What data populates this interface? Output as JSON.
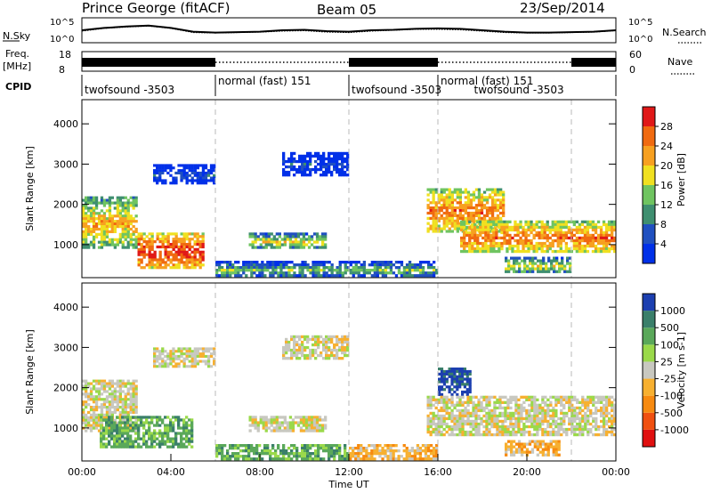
{
  "header": {
    "station": "Prince George (fitACF)",
    "beam": "Beam 05",
    "date": "23/Sep/2014"
  },
  "colors": {
    "power_scale": [
      "#0030e8",
      "#2050c0",
      "#3f8f70",
      "#6fc460",
      "#f0e020",
      "#f7a020",
      "#f06a10",
      "#e01818"
    ],
    "velocity_scale": [
      "#1c3fb0",
      "#3a7f6a",
      "#5aa85a",
      "#9ad94a",
      "#c8c8c0",
      "#f7b030",
      "#f78a10",
      "#f05010",
      "#e01010"
    ]
  },
  "chart_data": [
    {
      "type": "line",
      "panel": "noise",
      "series": [
        {
          "name": "N.Sky",
          "values": [
            2.5,
            3.0,
            3.3,
            3.5,
            3.0,
            2.2,
            2.0,
            2.1,
            2.2,
            2.5,
            2.6,
            2.3,
            2.2,
            2.5,
            2.6,
            2.8,
            2.9,
            2.8,
            2.5,
            2.2,
            2.0,
            2.0,
            2.1,
            2.2,
            2.5
          ]
        },
        {
          "name": "N.Search",
          "values": [
            2.3,
            2.9,
            3.2,
            3.4,
            2.9,
            2.0,
            1.9,
            2.0,
            2.1,
            2.3,
            2.4,
            2.1,
            2.0,
            2.3,
            2.5,
            2.7,
            2.7,
            2.6,
            2.3,
            2.0,
            1.9,
            1.9,
            2.0,
            2.1,
            2.4
          ]
        }
      ],
      "x": [
        "00",
        "01",
        "02",
        "03",
        "04",
        "05",
        "06",
        "07",
        "08",
        "09",
        "10",
        "11",
        "12",
        "13",
        "14",
        "15",
        "16",
        "17",
        "18",
        "19",
        "20",
        "21",
        "22",
        "23",
        "24"
      ],
      "ylabel_left": "N.Sky",
      "ylabel_right": "N.Search",
      "left_ticks": [
        "10^5",
        "10^0"
      ],
      "right_ticks": [
        "10^5",
        "10^0"
      ]
    },
    {
      "type": "line",
      "panel": "freq-nave",
      "ylabel_left_line1": "Freq.",
      "ylabel_left_line2": "[MHz]",
      "ylabel_right": "Nave",
      "left_ticks": [
        "18",
        "8"
      ],
      "right_ticks": [
        "60",
        "0"
      ],
      "segments": [
        {
          "start": 0,
          "end": 6,
          "style": "solid"
        },
        {
          "start": 6,
          "end": 12,
          "style": "dotted"
        },
        {
          "start": 12,
          "end": 16,
          "style": "solid"
        },
        {
          "start": 16,
          "end": 22,
          "style": "dotted"
        },
        {
          "start": 22,
          "end": 24,
          "style": "solid"
        }
      ]
    },
    {
      "type": "table",
      "panel": "cpid",
      "label": "CPID",
      "modes": [
        {
          "start": 0,
          "end": 6,
          "text": "twofsound -3503",
          "row": 1
        },
        {
          "start": 6,
          "end": 12,
          "text": "normal (fast) 151",
          "row": 0
        },
        {
          "start": 12,
          "end": 16,
          "text": "twofsound -3503",
          "row": 1
        },
        {
          "start": 16,
          "end": 22,
          "text": "normal (fast) 151",
          "row": 0
        },
        {
          "start": 17.5,
          "end": 22,
          "text": "twofsound -3503",
          "row": 1
        }
      ]
    },
    {
      "type": "heatmap",
      "panel": "power",
      "ylabel": "Slant Range [km]",
      "yticks": [
        1000,
        2000,
        3000,
        4000
      ],
      "ylim": [
        180,
        4600
      ],
      "xlim": [
        0,
        24
      ],
      "colorbar_label": "Power [dB]",
      "colorbar_ticks": [
        "28",
        "24",
        "20",
        "16",
        "12",
        "8",
        "4"
      ],
      "echo_regions": [
        {
          "t0": 0.0,
          "t1": 2.5,
          "r0": 900,
          "r1": 2200,
          "level": 5
        },
        {
          "t0": 2.5,
          "t1": 5.5,
          "r0": 400,
          "r1": 1300,
          "level": 7
        },
        {
          "t0": 3.2,
          "t1": 6.0,
          "r0": 2500,
          "r1": 3000,
          "level": 1
        },
        {
          "t0": 7.5,
          "t1": 11.0,
          "r0": 900,
          "r1": 1300,
          "level": 4
        },
        {
          "t0": 9.0,
          "t1": 12.0,
          "r0": 2700,
          "r1": 3300,
          "level": 1
        },
        {
          "t0": 6.0,
          "t1": 16.0,
          "r0": 200,
          "r1": 600,
          "level": 3
        },
        {
          "t0": 15.5,
          "t1": 19.0,
          "r0": 1300,
          "r1": 2400,
          "level": 6
        },
        {
          "t0": 17.0,
          "t1": 24.0,
          "r0": 800,
          "r1": 1600,
          "level": 6
        },
        {
          "t0": 19.0,
          "t1": 22.0,
          "r0": 300,
          "r1": 700,
          "level": 4
        }
      ]
    },
    {
      "type": "heatmap",
      "panel": "velocity",
      "ylabel": "Slant Range [km]",
      "yticks": [
        1000,
        2000,
        3000,
        4000
      ],
      "ylim": [
        180,
        4600
      ],
      "xlim": [
        0,
        24
      ],
      "xlabel": "Time UT",
      "xticks": [
        "00:00",
        "04:00",
        "08:00",
        "12:00",
        "16:00",
        "20:00",
        "00:00"
      ],
      "colorbar_label": "Velocity [m s-1]",
      "colorbar_ticks": [
        "1000",
        "500",
        "100",
        "25",
        "-25",
        "-100",
        "-500",
        "-1000"
      ],
      "echo_regions": [
        {
          "t0": 0.0,
          "t1": 2.5,
          "r0": 900,
          "r1": 2200,
          "level": 4
        },
        {
          "t0": 0.8,
          "t1": 5.0,
          "r0": 500,
          "r1": 1300,
          "level": 6
        },
        {
          "t0": 3.2,
          "t1": 6.0,
          "r0": 2500,
          "r1": 3000,
          "level": 4
        },
        {
          "t0": 7.5,
          "t1": 11.0,
          "r0": 900,
          "r1": 1300,
          "level": 4
        },
        {
          "t0": 9.0,
          "t1": 12.0,
          "r0": 2700,
          "r1": 3300,
          "level": 4
        },
        {
          "t0": 6.0,
          "t1": 12.0,
          "r0": 200,
          "r1": 600,
          "level": 6
        },
        {
          "t0": 12.0,
          "t1": 16.0,
          "r0": 200,
          "r1": 600,
          "level": 3
        },
        {
          "t0": 16.0,
          "t1": 17.5,
          "r0": 1800,
          "r1": 2500,
          "level": 8
        },
        {
          "t0": 15.5,
          "t1": 24.0,
          "r0": 800,
          "r1": 1800,
          "level": 4
        },
        {
          "t0": 19.0,
          "t1": 21.5,
          "r0": 300,
          "r1": 700,
          "level": 3
        }
      ]
    }
  ]
}
